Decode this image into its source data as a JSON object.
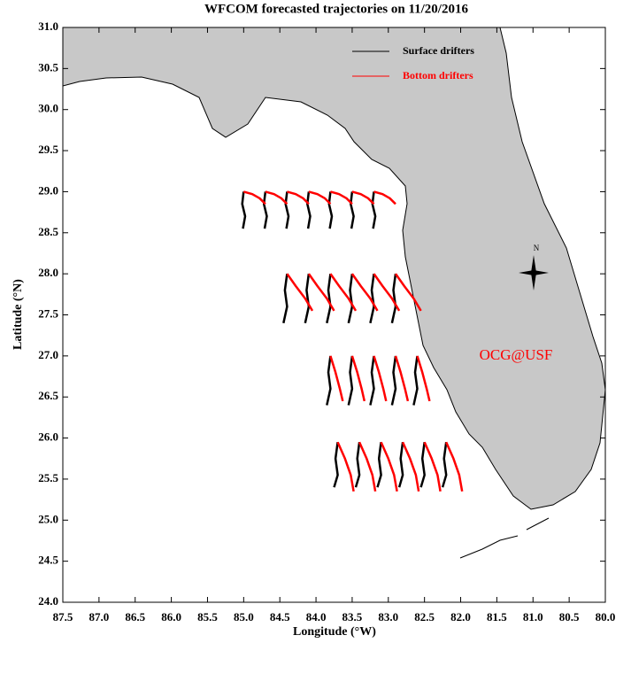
{
  "chart_data": {
    "type": "trajectory",
    "title": "WFCOM forecasted trajectories on 11/20/2016",
    "x_label": "Longitude (°W)",
    "y_label": "Latitude (°N)",
    "annotation": "OCG@USF",
    "annotation_color": "#ff0000",
    "compass_label": "N",
    "legend": "upper right",
    "xlim": [
      87.5,
      80.0
    ],
    "ylim": [
      24.0,
      31.0
    ],
    "xticks": [
      87.5,
      {
        "value": 87,
        "label": "87.0"
      },
      86.5,
      {
        "value": 86,
        "label": "86.0"
      },
      85.5,
      {
        "value": 85,
        "label": "85.0"
      },
      84.5,
      {
        "value": 84,
        "label": "84.0"
      },
      83.5,
      {
        "value": 83,
        "label": "83.0"
      },
      82.5,
      {
        "value": 82,
        "label": "82.0"
      },
      81.5,
      {
        "value": 81,
        "label": "81.0"
      },
      80.5,
      {
        "value": 80,
        "label": "80.0"
      }
    ],
    "yticks": [
      {
        "value": 24,
        "label": "24.0"
      },
      24.5,
      {
        "value": 25,
        "label": "25.0"
      },
      25.5,
      {
        "value": 26,
        "label": "26.0"
      },
      26.5,
      {
        "value": 27,
        "label": "27.0"
      },
      27.5,
      {
        "value": 28,
        "label": "28.0"
      },
      28.5,
      {
        "value": 29,
        "label": "29.0"
      },
      29.5,
      {
        "value": 30,
        "label": "30.0"
      },
      30.5,
      {
        "value": 31,
        "label": "31.0"
      }
    ],
    "series": [
      {
        "name": "Surface drifters",
        "color": "#000000",
        "tracks": [
          {
            "x": [
              85.0,
              85.02,
              84.98,
              85.01
            ],
            "y": [
              29.0,
              28.85,
              28.7,
              28.55
            ]
          },
          {
            "x": [
              84.7,
              84.72,
              84.68,
              84.71
            ],
            "y": [
              29.0,
              28.85,
              28.7,
              28.55
            ]
          },
          {
            "x": [
              84.4,
              84.42,
              84.38,
              84.41
            ],
            "y": [
              29.0,
              28.85,
              28.7,
              28.55
            ]
          },
          {
            "x": [
              84.1,
              84.12,
              84.08,
              84.11
            ],
            "y": [
              29.0,
              28.85,
              28.7,
              28.55
            ]
          },
          {
            "x": [
              83.8,
              83.82,
              83.78,
              83.81
            ],
            "y": [
              29.0,
              28.85,
              28.7,
              28.55
            ]
          },
          {
            "x": [
              83.5,
              83.52,
              83.48,
              83.51
            ],
            "y": [
              29.0,
              28.85,
              28.7,
              28.55
            ]
          },
          {
            "x": [
              83.2,
              83.22,
              83.18,
              83.21
            ],
            "y": [
              29.0,
              28.85,
              28.7,
              28.55
            ]
          },
          {
            "x": [
              84.4,
              84.43,
              84.4,
              84.45
            ],
            "y": [
              28.0,
              27.8,
              27.6,
              27.4
            ]
          },
          {
            "x": [
              84.1,
              84.13,
              84.1,
              84.15
            ],
            "y": [
              28.0,
              27.8,
              27.6,
              27.4
            ]
          },
          {
            "x": [
              83.8,
              83.83,
              83.8,
              83.85
            ],
            "y": [
              28.0,
              27.8,
              27.6,
              27.4
            ]
          },
          {
            "x": [
              83.5,
              83.53,
              83.5,
              83.55
            ],
            "y": [
              28.0,
              27.8,
              27.6,
              27.4
            ]
          },
          {
            "x": [
              83.2,
              83.23,
              83.2,
              83.25
            ],
            "y": [
              28.0,
              27.8,
              27.6,
              27.4
            ]
          },
          {
            "x": [
              82.9,
              82.93,
              82.9,
              82.95
            ],
            "y": [
              28.0,
              27.8,
              27.6,
              27.4
            ]
          },
          {
            "x": [
              83.8,
              83.83,
              83.8,
              83.85
            ],
            "y": [
              27.0,
              26.8,
              26.6,
              26.4
            ]
          },
          {
            "x": [
              83.5,
              83.53,
              83.5,
              83.55
            ],
            "y": [
              27.0,
              26.8,
              26.6,
              26.4
            ]
          },
          {
            "x": [
              83.2,
              83.23,
              83.2,
              83.25
            ],
            "y": [
              27.0,
              26.8,
              26.6,
              26.4
            ]
          },
          {
            "x": [
              82.9,
              82.93,
              82.9,
              82.95
            ],
            "y": [
              27.0,
              26.8,
              26.6,
              26.4
            ]
          },
          {
            "x": [
              82.6,
              82.63,
              82.6,
              82.65
            ],
            "y": [
              27.0,
              26.8,
              26.6,
              26.4
            ]
          },
          {
            "x": [
              83.7,
              83.73,
              83.7,
              83.75
            ],
            "y": [
              25.95,
              25.75,
              25.55,
              25.4
            ]
          },
          {
            "x": [
              83.4,
              83.43,
              83.4,
              83.45
            ],
            "y": [
              25.95,
              25.75,
              25.55,
              25.4
            ]
          },
          {
            "x": [
              83.1,
              83.13,
              83.1,
              83.15
            ],
            "y": [
              25.95,
              25.75,
              25.55,
              25.4
            ]
          },
          {
            "x": [
              82.8,
              82.83,
              82.8,
              82.85
            ],
            "y": [
              25.95,
              25.75,
              25.55,
              25.4
            ]
          },
          {
            "x": [
              82.5,
              82.53,
              82.5,
              82.55
            ],
            "y": [
              25.95,
              25.75,
              25.55,
              25.4
            ]
          },
          {
            "x": [
              82.2,
              82.23,
              82.2,
              82.25
            ],
            "y": [
              25.95,
              25.75,
              25.55,
              25.4
            ]
          }
        ]
      },
      {
        "name": "Bottom drifters",
        "color": "#ff0000",
        "tracks": [
          {
            "x": [
              85.0,
              84.88,
              84.78,
              84.7
            ],
            "y": [
              29.0,
              28.97,
              28.92,
              28.85
            ]
          },
          {
            "x": [
              84.7,
              84.58,
              84.48,
              84.4
            ],
            "y": [
              29.0,
              28.97,
              28.92,
              28.85
            ]
          },
          {
            "x": [
              84.4,
              84.28,
              84.18,
              84.1
            ],
            "y": [
              29.0,
              28.97,
              28.92,
              28.85
            ]
          },
          {
            "x": [
              84.1,
              83.98,
              83.88,
              83.8
            ],
            "y": [
              29.0,
              28.97,
              28.92,
              28.85
            ]
          },
          {
            "x": [
              83.8,
              83.68,
              83.58,
              83.5
            ],
            "y": [
              29.0,
              28.97,
              28.92,
              28.85
            ]
          },
          {
            "x": [
              83.5,
              83.38,
              83.28,
              83.2
            ],
            "y": [
              29.0,
              28.97,
              28.92,
              28.85
            ]
          },
          {
            "x": [
              83.2,
              83.08,
              82.98,
              82.9
            ],
            "y": [
              29.0,
              28.97,
              28.92,
              28.85
            ]
          },
          {
            "x": [
              84.4,
              84.28,
              84.15,
              84.05
            ],
            "y": [
              28.0,
              27.85,
              27.7,
              27.55
            ]
          },
          {
            "x": [
              84.1,
              83.98,
              83.85,
              83.75
            ],
            "y": [
              28.0,
              27.85,
              27.7,
              27.55
            ]
          },
          {
            "x": [
              83.8,
              83.68,
              83.55,
              83.45
            ],
            "y": [
              28.0,
              27.85,
              27.7,
              27.55
            ]
          },
          {
            "x": [
              83.5,
              83.38,
              83.25,
              83.15
            ],
            "y": [
              28.0,
              27.85,
              27.7,
              27.55
            ]
          },
          {
            "x": [
              83.2,
              83.08,
              82.95,
              82.85
            ],
            "y": [
              28.0,
              27.85,
              27.7,
              27.55
            ]
          },
          {
            "x": [
              82.9,
              82.78,
              82.65,
              82.55
            ],
            "y": [
              28.0,
              27.85,
              27.7,
              27.55
            ]
          },
          {
            "x": [
              83.8,
              83.73,
              83.67,
              83.63
            ],
            "y": [
              27.0,
              26.8,
              26.6,
              26.45
            ]
          },
          {
            "x": [
              83.5,
              83.43,
              83.37,
              83.33
            ],
            "y": [
              27.0,
              26.8,
              26.6,
              26.45
            ]
          },
          {
            "x": [
              83.2,
              83.13,
              83.07,
              83.03
            ],
            "y": [
              27.0,
              26.8,
              26.6,
              26.45
            ]
          },
          {
            "x": [
              82.9,
              82.83,
              82.77,
              82.73
            ],
            "y": [
              27.0,
              26.8,
              26.6,
              26.45
            ]
          },
          {
            "x": [
              82.6,
              82.53,
              82.47,
              82.43
            ],
            "y": [
              27.0,
              26.8,
              26.6,
              26.45
            ]
          },
          {
            "x": [
              83.7,
              83.6,
              83.52,
              83.48
            ],
            "y": [
              25.95,
              25.75,
              25.55,
              25.35
            ]
          },
          {
            "x": [
              83.4,
              83.3,
              83.22,
              83.18
            ],
            "y": [
              25.95,
              25.75,
              25.55,
              25.35
            ]
          },
          {
            "x": [
              83.1,
              83.0,
              82.92,
              82.88
            ],
            "y": [
              25.95,
              25.75,
              25.55,
              25.35
            ]
          },
          {
            "x": [
              82.8,
              82.7,
              82.62,
              82.58
            ],
            "y": [
              25.95,
              25.75,
              25.55,
              25.35
            ]
          },
          {
            "x": [
              82.5,
              82.4,
              82.32,
              82.28
            ],
            "y": [
              25.95,
              25.75,
              25.55,
              25.35
            ]
          },
          {
            "x": [
              82.2,
              82.1,
              82.02,
              81.98
            ],
            "y": [
              25.95,
              25.75,
              25.55,
              25.35
            ]
          }
        ]
      }
    ]
  }
}
